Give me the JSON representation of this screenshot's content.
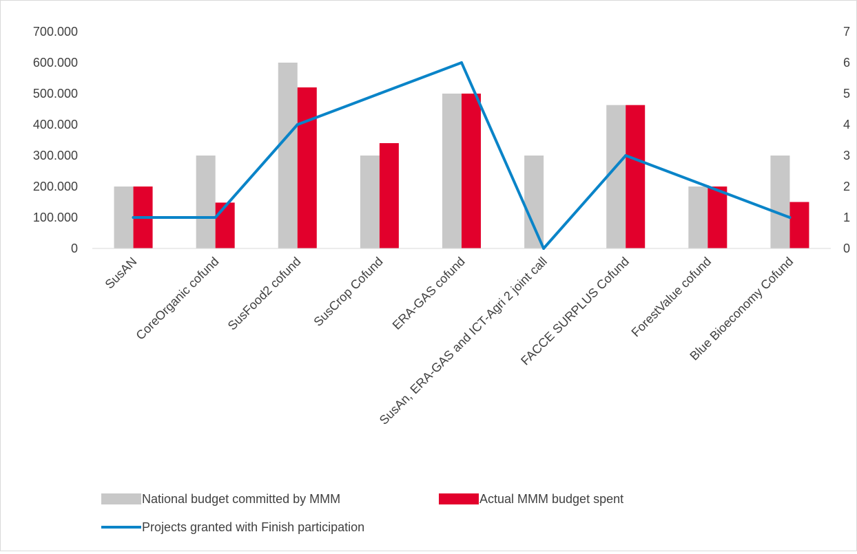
{
  "chart_data": {
    "type": "bar",
    "categories": [
      "SusAN",
      "CoreOrganic cofund",
      "SusFood2 cofund",
      "SusCrop Cofund",
      "ERA-GAS cofund",
      "SusAn, ERA-GAS and ICT-Agri 2 joint call",
      "FACCE SURPLUS Cofund",
      "ForestValue cofund",
      "Blue Bioeconomy Cofund"
    ],
    "series": [
      {
        "name": "National budget committed by MMM",
        "type": "bar",
        "axis": "left",
        "color": "#c8c8c8",
        "values": [
          200000,
          300000,
          600000,
          300000,
          500000,
          300000,
          463000,
          200000,
          300000
        ]
      },
      {
        "name": "Actual MMM budget spent",
        "type": "bar",
        "axis": "left",
        "color": "#e2002c",
        "values": [
          200000,
          148000,
          520000,
          340000,
          500000,
          0,
          463000,
          200000,
          150000
        ]
      },
      {
        "name": "Projects granted with Finish participation",
        "type": "line",
        "axis": "right",
        "color": "#0a84c8",
        "values": [
          1,
          1,
          4,
          5,
          6,
          0,
          3,
          2,
          1
        ]
      }
    ],
    "y_left": {
      "min": 0,
      "max": 700000,
      "step": 100000,
      "tick_labels": [
        "0",
        "100.000",
        "200.000",
        "300.000",
        "400.000",
        "500.000",
        "600.000",
        "700.000"
      ]
    },
    "y_right": {
      "min": 0,
      "max": 7,
      "step": 1,
      "tick_labels": [
        "0",
        "1",
        "2",
        "3",
        "4",
        "5",
        "6",
        "7"
      ]
    },
    "grid": false,
    "legend_position": "bottom-left"
  }
}
